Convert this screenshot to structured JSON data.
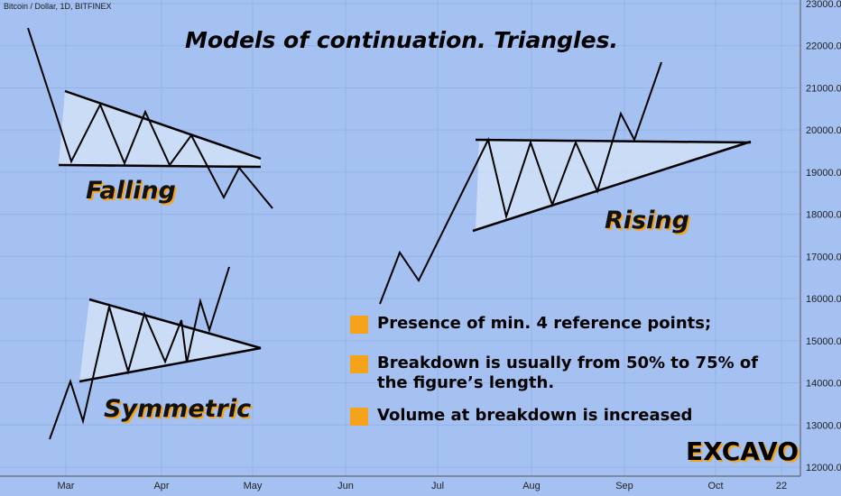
{
  "chart_data": {
    "type": "line",
    "symbol": "Bitcoin / Dollar, 1D, BITFINEX",
    "title": "Models of continuation. Triangles.",
    "xlabel": "",
    "ylabel": "",
    "ylim": [
      12000,
      23000
    ],
    "y_ticks": [
      "12000.0",
      "13000.0",
      "14000.0",
      "15000.0",
      "16000.0",
      "17000.0",
      "18000.0",
      "19000.0",
      "20000.0",
      "21000.0",
      "22000.0",
      "23000.0"
    ],
    "x_ticks": [
      "Mar",
      "Apr",
      "May",
      "Jun",
      "Jul",
      "Aug",
      "Sep",
      "Oct",
      "22"
    ],
    "patterns": [
      {
        "name": "Falling",
        "label": "Falling"
      },
      {
        "name": "Symmetric",
        "label": "Symmetric"
      },
      {
        "name": "Rising",
        "label": "Rising"
      }
    ],
    "grid": true
  },
  "bullets": [
    {
      "text": "Presence of min. 4 reference points;"
    },
    {
      "text": "Breakdown is usually from 50% to 75% of the figure’s  length."
    },
    {
      "text": "Volume at breakdown is increased"
    }
  ],
  "brand": "EXCAVO",
  "colors": {
    "background": "#a4c1f2",
    "accent": "#f5a31a",
    "fill": "#d2e0f8",
    "line": "#000000"
  }
}
